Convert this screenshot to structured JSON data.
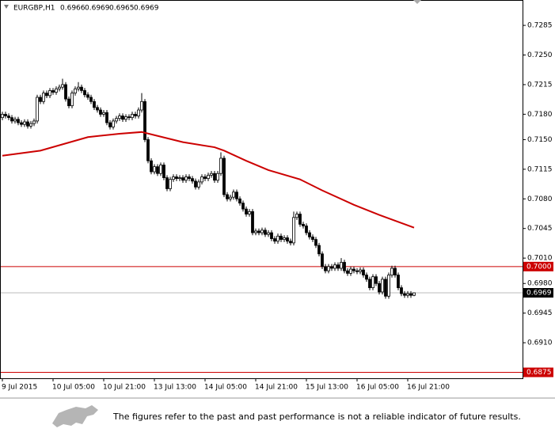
{
  "chart_data": {
    "type": "candlestick",
    "title": "EURGBP,H1",
    "categories": [
      "9 Jul 2015",
      null,
      null,
      null,
      null,
      null,
      null,
      null,
      null,
      null,
      null,
      null,
      null,
      null,
      null,
      null,
      "10 Jul 05:00",
      null,
      null,
      null,
      null,
      null,
      null,
      null,
      null,
      null,
      null,
      null,
      null,
      null,
      null,
      null,
      "10 Jul 21:00",
      null,
      null,
      null,
      null,
      null,
      null,
      null,
      null,
      null,
      null,
      null,
      null,
      null,
      null,
      null,
      "13 Jul 13:00",
      null,
      null,
      null,
      null,
      null,
      null,
      null,
      null,
      null,
      null,
      null,
      null,
      null,
      null,
      null,
      "14 Jul 05:00",
      null,
      null,
      null,
      null,
      null,
      null,
      null,
      null,
      null,
      null,
      null,
      null,
      null,
      null,
      null,
      "14 Jul 21:00",
      null,
      null,
      null,
      null,
      null,
      null,
      null,
      null,
      null,
      null,
      null,
      null,
      null,
      null,
      null,
      "15 Jul 13:00",
      null,
      null,
      null,
      null,
      null,
      null,
      null,
      null,
      null,
      null,
      null,
      null,
      null,
      null,
      null,
      "16 Jul 05:00",
      null,
      null,
      null,
      null,
      null,
      null,
      null,
      null,
      null,
      null,
      null,
      null,
      null,
      null,
      null,
      "16 Jul 21:00",
      null,
      null
    ],
    "open": [
      0.7176,
      0.718,
      0.7178,
      0.7176,
      0.7172,
      0.7174,
      0.717,
      0.7168,
      0.7171,
      0.7166,
      0.7169,
      0.7172,
      0.72,
      0.7195,
      0.7205,
      0.7202,
      0.7208,
      0.7206,
      0.721,
      0.7212,
      0.7215,
      0.7198,
      0.719,
      0.7205,
      0.721,
      0.7212,
      0.7208,
      0.7203,
      0.72,
      0.7195,
      0.7188,
      0.7185,
      0.718,
      0.7182,
      0.717,
      0.7165,
      0.7172,
      0.7175,
      0.7178,
      0.7174,
      0.7177,
      0.7176,
      0.718,
      0.7178,
      0.7185,
      0.7195,
      0.715,
      0.7125,
      0.7112,
      0.7118,
      0.711,
      0.712,
      0.7105,
      0.7092,
      0.7103,
      0.7106,
      0.7104,
      0.7105,
      0.7102,
      0.7106,
      0.7104,
      0.7101,
      0.7094,
      0.71,
      0.7106,
      0.7104,
      0.7108,
      0.711,
      0.7102,
      0.711,
      0.7128,
      0.7085,
      0.708,
      0.7082,
      0.7088,
      0.708,
      0.7075,
      0.7068,
      0.7062,
      0.7065,
      0.704,
      0.7042,
      0.704,
      0.7043,
      0.7038,
      0.704,
      0.7033,
      0.703,
      0.7036,
      0.7032,
      0.7034,
      0.703,
      0.7028,
      0.7058,
      0.7062,
      0.705,
      0.7048,
      0.704,
      0.7035,
      0.7032,
      0.7025,
      0.7015,
      0.7,
      0.6995,
      0.7,
      0.6998,
      0.7002,
      0.6998,
      0.7005,
      0.6995,
      0.6992,
      0.6997,
      0.6995,
      0.6994,
      0.6996,
      0.699,
      0.6985,
      0.6975,
      0.6988,
      0.698,
      0.697,
      0.6985,
      0.6965,
      0.699,
      0.6998,
      0.699,
      0.6975,
      0.6968,
      0.6966,
      0.6968,
      0.6966
    ],
    "high": [
      0.7183,
      0.7183,
      0.7181,
      0.7179,
      0.7177,
      0.7177,
      0.7173,
      0.7174,
      0.7174,
      0.7172,
      0.7175,
      0.7203,
      0.7203,
      0.7208,
      0.7208,
      0.7211,
      0.7211,
      0.7213,
      0.7215,
      0.7222,
      0.7218,
      0.7201,
      0.7208,
      0.7213,
      0.7218,
      0.7215,
      0.7211,
      0.7206,
      0.7203,
      0.7198,
      0.7191,
      0.7188,
      0.7185,
      0.7185,
      0.7173,
      0.7175,
      0.7178,
      0.7181,
      0.7181,
      0.718,
      0.718,
      0.7183,
      0.7183,
      0.7188,
      0.7205,
      0.7198,
      0.7153,
      0.7128,
      0.7121,
      0.7121,
      0.7123,
      0.7123,
      0.7108,
      0.7106,
      0.7109,
      0.7109,
      0.7108,
      0.7108,
      0.7109,
      0.7109,
      0.7107,
      0.7104,
      0.7103,
      0.7109,
      0.7109,
      0.7111,
      0.7113,
      0.7113,
      0.7113,
      0.7135,
      0.7131,
      0.7088,
      0.7085,
      0.7091,
      0.7091,
      0.7083,
      0.7078,
      0.7071,
      0.7068,
      0.7068,
      0.7045,
      0.7045,
      0.7046,
      0.7046,
      0.7043,
      0.7043,
      0.7036,
      0.7039,
      0.7039,
      0.7037,
      0.7037,
      0.7033,
      0.7065,
      0.7065,
      0.7065,
      0.7053,
      0.7051,
      0.7043,
      0.7038,
      0.7035,
      0.7028,
      0.7018,
      0.7003,
      0.7003,
      0.7003,
      0.7005,
      0.7005,
      0.701,
      0.7008,
      0.6998,
      0.7,
      0.7,
      0.6998,
      0.6999,
      0.6999,
      0.6993,
      0.6988,
      0.6991,
      0.6991,
      0.6983,
      0.6988,
      0.6988,
      0.6993,
      0.7001,
      0.7001,
      0.6993,
      0.6978,
      0.6971,
      0.6971,
      0.6971,
      0.6969
    ],
    "low": [
      0.7173,
      0.7175,
      0.7173,
      0.7169,
      0.7169,
      0.7167,
      0.7165,
      0.7165,
      0.7163,
      0.7163,
      0.7166,
      0.7169,
      0.7192,
      0.7192,
      0.7199,
      0.7199,
      0.7203,
      0.7203,
      0.7207,
      0.7209,
      0.7195,
      0.7187,
      0.7187,
      0.7202,
      0.7207,
      0.7205,
      0.72,
      0.7197,
      0.7192,
      0.7185,
      0.7182,
      0.7177,
      0.7177,
      0.7167,
      0.7162,
      0.7162,
      0.7169,
      0.7172,
      0.7171,
      0.7171,
      0.7173,
      0.7173,
      0.7175,
      0.7175,
      0.7182,
      0.7147,
      0.7122,
      0.7109,
      0.7109,
      0.7107,
      0.7107,
      0.7102,
      0.7089,
      0.7089,
      0.71,
      0.7101,
      0.7101,
      0.7099,
      0.7099,
      0.7101,
      0.7098,
      0.7091,
      0.7091,
      0.7097,
      0.7101,
      0.7101,
      0.7105,
      0.7099,
      0.7099,
      0.7107,
      0.7082,
      0.7077,
      0.7077,
      0.7079,
      0.7077,
      0.7072,
      0.7065,
      0.7059,
      0.7059,
      0.7037,
      0.7037,
      0.7037,
      0.7037,
      0.7035,
      0.7035,
      0.703,
      0.7027,
      0.7027,
      0.7029,
      0.7029,
      0.7027,
      0.7025,
      0.7025,
      0.7055,
      0.7047,
      0.7045,
      0.7037,
      0.7032,
      0.7029,
      0.7022,
      0.7012,
      0.6997,
      0.6992,
      0.6992,
      0.6995,
      0.6995,
      0.6995,
      0.6995,
      0.6992,
      0.6989,
      0.6989,
      0.6992,
      0.6991,
      0.6991,
      0.6987,
      0.6982,
      0.6972,
      0.6972,
      0.6977,
      0.6967,
      0.6967,
      0.6962,
      0.6962,
      0.6987,
      0.6987,
      0.6972,
      0.6965,
      0.6963,
      0.6963,
      0.6963,
      0.6965
    ],
    "close": [
      0.718,
      0.7178,
      0.7176,
      0.7172,
      0.7174,
      0.717,
      0.7168,
      0.7171,
      0.7166,
      0.7169,
      0.7172,
      0.72,
      0.7195,
      0.7205,
      0.7202,
      0.7208,
      0.7206,
      0.721,
      0.7212,
      0.7215,
      0.7198,
      0.719,
      0.7205,
      0.721,
      0.7212,
      0.7208,
      0.7203,
      0.72,
      0.7195,
      0.7188,
      0.7185,
      0.718,
      0.7182,
      0.717,
      0.7165,
      0.7172,
      0.7175,
      0.7178,
      0.7174,
      0.7177,
      0.7176,
      0.718,
      0.7178,
      0.7185,
      0.7195,
      0.715,
      0.7125,
      0.7112,
      0.7118,
      0.711,
      0.712,
      0.7105,
      0.7092,
      0.7103,
      0.7106,
      0.7104,
      0.7105,
      0.7102,
      0.7106,
      0.7104,
      0.7101,
      0.7094,
      0.71,
      0.7106,
      0.7104,
      0.7108,
      0.711,
      0.7102,
      0.711,
      0.7128,
      0.7085,
      0.708,
      0.7082,
      0.7088,
      0.708,
      0.7075,
      0.7068,
      0.7062,
      0.7065,
      0.704,
      0.7042,
      0.704,
      0.7043,
      0.7038,
      0.704,
      0.7033,
      0.703,
      0.7036,
      0.7032,
      0.7034,
      0.703,
      0.7028,
      0.7058,
      0.7062,
      0.705,
      0.7048,
      0.704,
      0.7035,
      0.7032,
      0.7025,
      0.7015,
      0.7,
      0.6995,
      0.7,
      0.6998,
      0.7002,
      0.6998,
      0.7005,
      0.6995,
      0.6992,
      0.6997,
      0.6995,
      0.6994,
      0.6996,
      0.699,
      0.6985,
      0.6975,
      0.6988,
      0.698,
      0.697,
      0.6985,
      0.6965,
      0.699,
      0.6998,
      0.699,
      0.6975,
      0.6968,
      0.6966,
      0.6968,
      0.6966,
      0.6969
    ],
    "up_color": "#ffffff",
    "down_color": "#000000",
    "moving_average": {
      "color": "#cc0000",
      "x": [
        0,
        12,
        27,
        37,
        44,
        57,
        67,
        70,
        77,
        84,
        94,
        101,
        111,
        119,
        130
      ],
      "values": [
        0.7131,
        0.7137,
        0.7153,
        0.7157,
        0.7159,
        0.7147,
        0.7141,
        0.7137,
        0.7125,
        0.7114,
        0.7103,
        0.709,
        0.7073,
        0.7061,
        0.7046
      ]
    },
    "ylim": [
      0.6868,
      0.7315
    ],
    "yticks": [
      0.7285,
      {
        "value": 0.725,
        "label": "0.7250"
      },
      0.7215,
      {
        "value": 0.718,
        "label": "0.7180"
      },
      {
        "value": 0.715,
        "label": "0.7150"
      },
      0.7115,
      {
        "value": 0.708,
        "label": "0.7080"
      },
      0.7045,
      {
        "value": 0.701,
        "label": "0.7010"
      },
      {
        "value": 0.698,
        "label": "0.6980"
      },
      0.6945,
      {
        "value": 0.691,
        "label": "0.6910"
      }
    ],
    "hlines": [
      {
        "value": 0.7,
        "label": "0.7000",
        "color": "#cc0000"
      },
      {
        "value": 0.6875,
        "label": "0.6875",
        "color": "#cc0000"
      }
    ],
    "last_price": {
      "value": 0.6969,
      "label": "0.6969",
      "color": "#000000"
    }
  },
  "disclaimer": "The figures refer to the past and past performance is not a reliable indicator of future results."
}
